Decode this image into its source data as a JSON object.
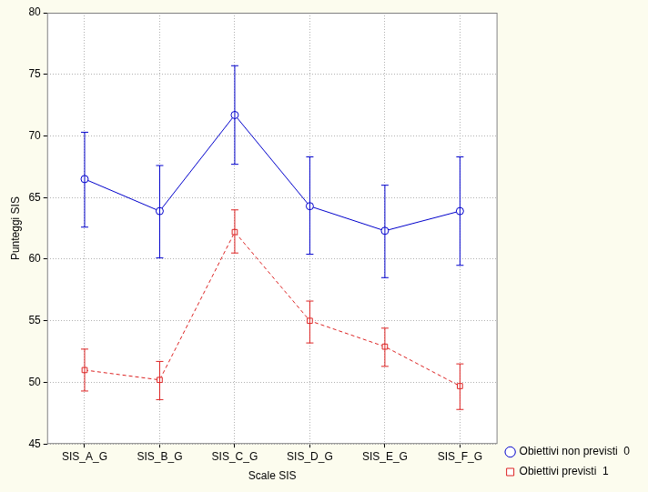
{
  "chart_data": {
    "type": "line",
    "x_label": "Scale SIS",
    "y_label": "Punteggi SIS",
    "categories": [
      "SIS_A_G",
      "SIS_B_G",
      "SIS_C_G",
      "SIS_D_G",
      "SIS_E_G",
      "SIS_F_G"
    ],
    "series": [
      {
        "name": "Obiettivi non previsti  0",
        "color": "#0000cc",
        "marker": "circle",
        "line_style": "solid",
        "values": [
          66.5,
          63.9,
          71.7,
          64.3,
          62.3,
          63.9
        ],
        "lower": [
          62.6,
          60.1,
          67.7,
          60.4,
          58.5,
          59.5
        ],
        "upper": [
          70.3,
          67.6,
          75.7,
          68.3,
          66.0,
          68.3
        ]
      },
      {
        "name": "Obiettivi previsti  1",
        "color": "#dd2222",
        "marker": "square",
        "line_style": "dashed",
        "values": [
          51.0,
          50.2,
          62.2,
          55.0,
          52.9,
          49.7
        ],
        "lower": [
          49.3,
          48.6,
          60.5,
          53.2,
          51.3,
          47.8
        ],
        "upper": [
          52.7,
          51.7,
          64.0,
          56.6,
          54.4,
          51.5
        ]
      }
    ],
    "ylim": [
      45,
      80
    ],
    "yticks": [
      45,
      50,
      55,
      60,
      65,
      70,
      75,
      80
    ],
    "grid": true,
    "legend": "right"
  }
}
